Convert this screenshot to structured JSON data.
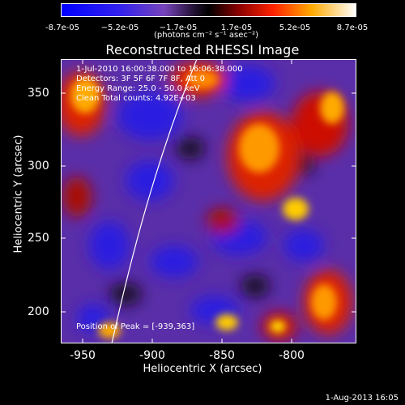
{
  "colorbar": {
    "ticks": [
      "-8.7e-05",
      "−5.2e-05",
      "−1.7e-05",
      "1.7e-05",
      "5.2e-05",
      "8.7e-05"
    ],
    "units": "(photons cm⁻² s⁻¹ asec⁻²)",
    "colors": [
      "#0000ff",
      "#5533cc",
      "#8844aa",
      "#222222",
      "#aa1100",
      "#ff5500",
      "#ffcc00",
      "#ffffff"
    ]
  },
  "title": "Reconstructed RHESSI Image",
  "annotations": {
    "line1": "1-Jul-2010 16:00:38.000 to 16:06:38.000",
    "line2": "Detectors: 3F 5F 6F 7F 8F, Att 0",
    "line3": "Energy Range: 25.0 - 50.0 keV",
    "line4": "Clean     Total counts: 4.92E+03",
    "peak": "Position of Peak = [-939,363]"
  },
  "axes": {
    "xlabel": "Heliocentric X (arcsec)",
    "ylabel": "Heliocentric Y (arcsec)",
    "xticks": [
      "-950",
      "-900",
      "-850",
      "-800"
    ],
    "yticks": [
      "350",
      "300",
      "250",
      "200"
    ]
  },
  "footer": {
    "datestamp": "1-Aug-2013 16:05"
  }
}
